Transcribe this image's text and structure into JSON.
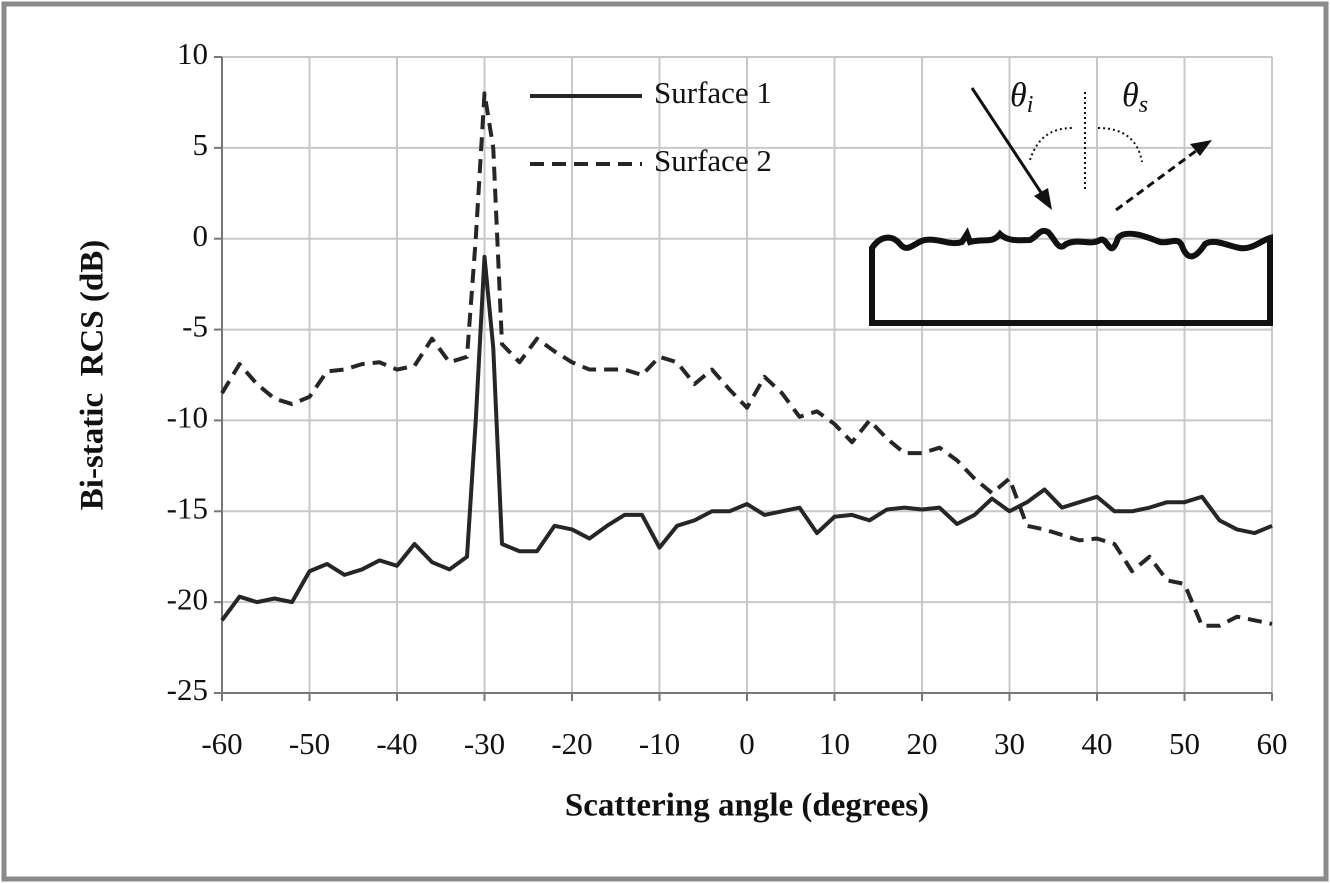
{
  "chart_data": {
    "type": "line",
    "xlabel": "Scattering angle (degrees)",
    "ylabel": "Bi-static  RCS (dB)",
    "x": [
      -60,
      -58,
      -56,
      -54,
      -52,
      -50,
      -48,
      -46,
      -44,
      -42,
      -40,
      -38,
      -36,
      -34,
      -32,
      -31,
      -30,
      -29,
      -28,
      -26,
      -24,
      -22,
      -20,
      -18,
      -16,
      -14,
      -12,
      -10,
      -8,
      -6,
      -4,
      -2,
      0,
      2,
      4,
      6,
      8,
      10,
      12,
      14,
      16,
      18,
      20,
      22,
      24,
      26,
      28,
      30,
      32,
      34,
      36,
      38,
      40,
      42,
      44,
      46,
      48,
      50,
      52,
      54,
      56,
      58,
      60
    ],
    "series": [
      {
        "name": "Surface 1",
        "color": "#262626",
        "style": "solid",
        "values": [
          -21,
          -19.7,
          -20,
          -19.8,
          -20,
          -18.3,
          -17.9,
          -18.5,
          -18.2,
          -17.7,
          -18,
          -16.8,
          -17.8,
          -18.2,
          -17.5,
          -10,
          -1,
          -6,
          -16.8,
          -17.2,
          -17.2,
          -15.8,
          -16,
          -16.5,
          -15.8,
          -15.2,
          -15.2,
          -17,
          -15.8,
          -15.5,
          -15,
          -15,
          -14.6,
          -15.2,
          -15,
          -14.8,
          -16.2,
          -15.3,
          -15.2,
          -15.5,
          -14.9,
          -14.8,
          -14.9,
          -14.8,
          -15.7,
          -15.2,
          -14.3,
          -15,
          -14.5,
          -13.8,
          -14.8,
          -14.5,
          -14.2,
          -15,
          -15,
          -14.8,
          -14.5,
          -14.5,
          -14.2,
          -15.5,
          -16,
          -16.2,
          -15.8
        ]
      },
      {
        "name": "Surface 2",
        "color": "#262626",
        "style": "dashed",
        "values": [
          -8.5,
          -6.9,
          -8,
          -8.8,
          -9.1,
          -8.7,
          -7.3,
          -7.2,
          -6.9,
          -6.8,
          -7.2,
          -7,
          -5.5,
          -6.8,
          -6.5,
          0,
          8,
          5,
          -5.8,
          -6.8,
          -5.5,
          -6.2,
          -6.8,
          -7.2,
          -7.2,
          -7.2,
          -7.5,
          -6.5,
          -6.8,
          -8,
          -7.2,
          -8.3,
          -9.3,
          -7.6,
          -8.5,
          -9.8,
          -9.5,
          -10.2,
          -11.2,
          -10,
          -11,
          -11.8,
          -11.8,
          -11.5,
          -12.2,
          -13.2,
          -14,
          -13.2,
          -15.8,
          -16,
          -16.3,
          -16.6,
          -16.5,
          -16.8,
          -18.3,
          -17.5,
          -18.8,
          -19,
          -21.3,
          -21.3,
          -20.8,
          -21,
          -21.2
        ]
      }
    ],
    "xlim": [
      -60,
      60
    ],
    "xticks": [
      -60,
      -50,
      -40,
      -30,
      -20,
      -10,
      0,
      10,
      20,
      30,
      40,
      50,
      60
    ],
    "ylim": [
      -25,
      10
    ],
    "yticks": [
      -25,
      -20,
      -15,
      -10,
      -5,
      0,
      5,
      10
    ],
    "grid": true,
    "inset_labels": [
      {
        "symbol": "θ",
        "subscript": "i"
      },
      {
        "symbol": "θ",
        "subscript": "s"
      }
    ]
  }
}
